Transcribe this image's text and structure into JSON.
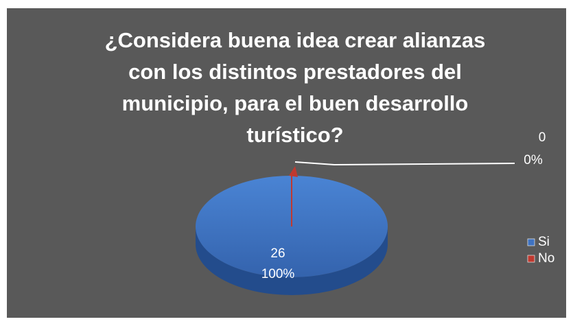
{
  "chart_data": {
    "type": "pie",
    "title": "¿Considera buena idea crear alianzas con los distintos prestadores del municipio, para el buen desarrollo turístico?",
    "categories": [
      "Si",
      "No"
    ],
    "values": [
      26,
      0
    ],
    "percent_labels": [
      "100%",
      "0%"
    ],
    "colors": [
      "#3f73c2",
      "#c0392f"
    ],
    "legend": "right"
  }
}
